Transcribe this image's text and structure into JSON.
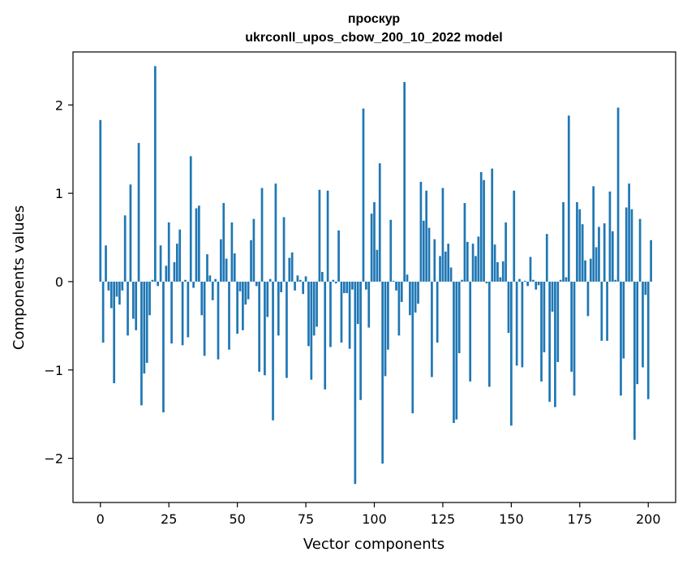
{
  "chart_data": {
    "type": "bar",
    "title": "проскур",
    "subtitle": "ukrconll_upos_cbow_200_10_2022 model",
    "xlabel": "Vector components",
    "ylabel": "Components values",
    "xlim": [
      -10,
      210
    ],
    "ylim": [
      -2.5,
      2.6
    ],
    "xticks": [
      0,
      25,
      50,
      75,
      100,
      125,
      150,
      175,
      200
    ],
    "yticks": [
      -2,
      -1,
      0,
      1,
      2
    ],
    "xtick_labels": [
      "0",
      "25",
      "50",
      "75",
      "100",
      "125",
      "150",
      "175",
      "200"
    ],
    "ytick_labels": [
      "−2",
      "−1",
      "0",
      "1",
      "2"
    ],
    "bar_color": "#1f77b4",
    "grid": false,
    "legend": "none",
    "x_start": 0,
    "values": [
      1.83,
      -0.69,
      0.41,
      -0.1,
      -0.3,
      -1.15,
      -0.17,
      -0.26,
      -0.1,
      0.75,
      -0.61,
      1.1,
      -0.42,
      -0.55,
      1.57,
      -1.4,
      -1.04,
      -0.92,
      -0.38,
      0.02,
      2.44,
      -0.05,
      0.41,
      -1.48,
      0.18,
      0.67,
      -0.7,
      0.22,
      0.43,
      0.59,
      -0.72,
      0.02,
      -0.63,
      1.42,
      -0.07,
      0.83,
      0.86,
      -0.38,
      -0.84,
      0.31,
      0.07,
      -0.21,
      0.03,
      -0.88,
      0.48,
      0.89,
      0.26,
      -0.77,
      0.67,
      0.32,
      -0.59,
      -0.11,
      -0.55,
      -0.26,
      -0.2,
      0.47,
      0.71,
      -0.05,
      -1.02,
      1.06,
      -1.06,
      -0.4,
      0.03,
      -1.57,
      1.11,
      -0.61,
      -0.12,
      0.73,
      -1.09,
      0.27,
      0.33,
      -0.1,
      0.07,
      0.02,
      -0.14,
      0.06,
      -0.73,
      -1.11,
      -0.61,
      -0.51,
      1.04,
      0.11,
      -1.22,
      1.03,
      -0.74,
      0.02,
      -0.02,
      0.58,
      -0.69,
      -0.13,
      -0.13,
      -0.76,
      -0.09,
      -2.29,
      -0.48,
      -1.34,
      1.96,
      -0.09,
      -0.52,
      0.77,
      0.9,
      0.36,
      1.34,
      -2.06,
      -1.07,
      -0.77,
      0.7,
      0.01,
      -0.1,
      -0.61,
      -0.23,
      2.26,
      0.08,
      -0.38,
      -1.49,
      -0.35,
      -0.25,
      1.13,
      0.69,
      1.03,
      0.61,
      -1.08,
      0.48,
      -0.69,
      0.29,
      1.06,
      0.34,
      0.43,
      0.16,
      -1.6,
      -1.56,
      -0.81,
      0.02,
      0.89,
      0.45,
      -1.13,
      0.43,
      0.29,
      0.51,
      1.24,
      1.15,
      -0.02,
      -1.19,
      1.28,
      0.42,
      0.22,
      0.05,
      0.23,
      0.67,
      -0.58,
      -1.63,
      1.03,
      -0.95,
      0.03,
      -0.97,
      0.01,
      -0.05,
      0.28,
      0.02,
      -0.09,
      -0.04,
      -1.13,
      -0.8,
      0.54,
      -1.36,
      -0.34,
      -1.42,
      -0.91,
      0.02,
      0.9,
      0.05,
      1.88,
      -1.02,
      -1.29,
      0.9,
      0.82,
      0.65,
      0.24,
      -0.39,
      0.26,
      1.08,
      0.39,
      0.62,
      -0.67,
      0.66,
      -0.67,
      1.02,
      0.57,
      0.02,
      1.97,
      -1.29,
      -0.87,
      0.84,
      1.11,
      0.82,
      -1.79,
      -1.16,
      0.71,
      -0.97,
      -0.15,
      -1.33,
      0.47
    ]
  }
}
